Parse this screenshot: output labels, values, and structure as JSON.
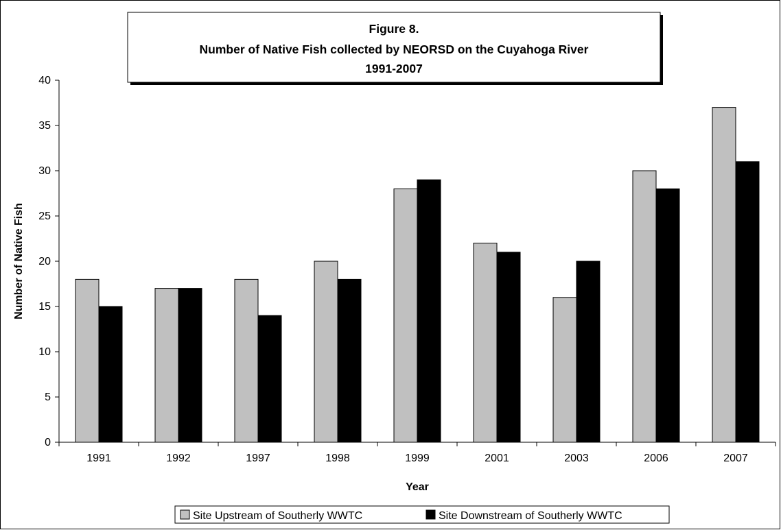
{
  "chart_data": {
    "type": "bar",
    "title": [
      "Figure 8.",
      "Number of Native Fish collected by NEORSD on the Cuyahoga River",
      "1991-2007"
    ],
    "xlabel": "Year",
    "ylabel": "Number of Native Fish",
    "categories": [
      "1991",
      "1992",
      "1997",
      "1998",
      "1999",
      "2001",
      "2003",
      "2006",
      "2007"
    ],
    "series": [
      {
        "name": "Site Upstream of Southerly WWTC",
        "color": "#c0c0c0",
        "values": [
          18,
          17,
          18,
          20,
          28,
          22,
          16,
          30,
          37
        ]
      },
      {
        "name": "Site Downstream of Southerly WWTC",
        "color": "#000000",
        "values": [
          15,
          17,
          14,
          18,
          29,
          21,
          20,
          28,
          31
        ]
      }
    ],
    "ylim": [
      0,
      40
    ],
    "yticks": [
      0,
      5,
      10,
      15,
      20,
      25,
      30,
      35,
      40
    ],
    "grid": false,
    "legend_position": "bottom"
  }
}
